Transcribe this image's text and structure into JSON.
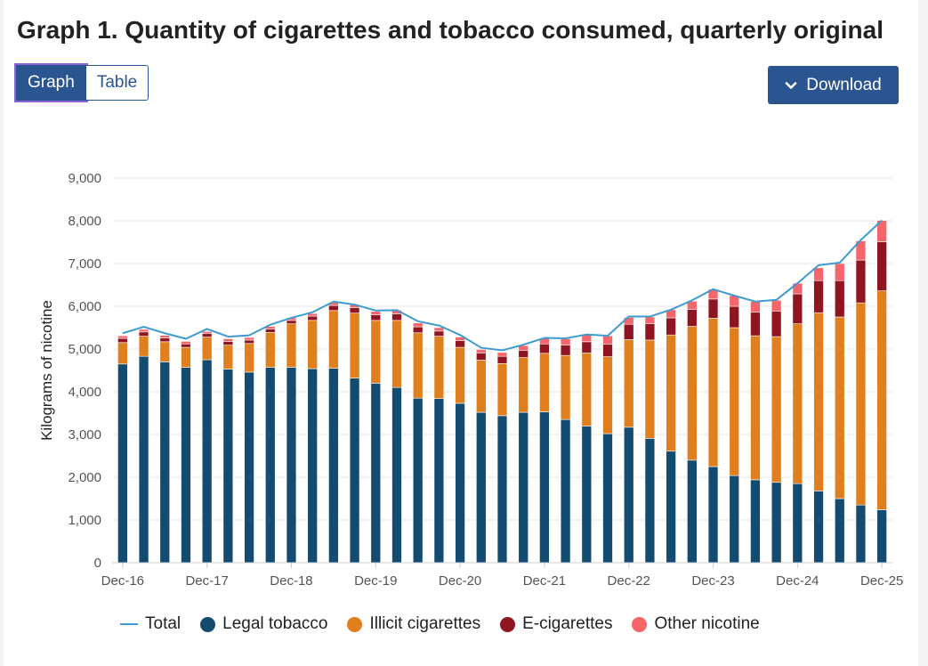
{
  "title": "Graph 1. Quantity of cigarettes and tobacco consumed, quarterly original",
  "tabs": [
    {
      "label": "Graph",
      "active": true
    },
    {
      "label": "Table",
      "active": false
    }
  ],
  "download_label": "Download",
  "colors": {
    "total": "#3d9bd0",
    "legal": "#134c70",
    "illicit": "#e07f1d",
    "ecig": "#8f1521",
    "other": "#f6656a",
    "accent": "#2a5591"
  },
  "chart_data": {
    "type": "bar",
    "stacked": true,
    "ylabel": "Kilograms of nicotine",
    "xlabel": "",
    "ylim": [
      0,
      9000
    ],
    "yticks": [
      "0",
      "1,000",
      "2,000",
      "3,000",
      "4,000",
      "5,000",
      "6,000",
      "7,000",
      "8,000",
      "9,000"
    ],
    "grid": true,
    "legend_position": "bottom",
    "x_tick_labels": [
      {
        "index": 0,
        "label": "Dec-16"
      },
      {
        "index": 4,
        "label": "Dec-17"
      },
      {
        "index": 8,
        "label": "Dec-18"
      },
      {
        "index": 12,
        "label": "Dec-19"
      },
      {
        "index": 16,
        "label": "Dec-20"
      },
      {
        "index": 20,
        "label": "Dec-21"
      },
      {
        "index": 24,
        "label": "Dec-22"
      },
      {
        "index": 28,
        "label": "Dec-23"
      },
      {
        "index": 32,
        "label": "Dec-24"
      },
      {
        "index": 36,
        "label": "Dec-25"
      }
    ],
    "categories": [
      "Dec-16",
      "Mar-17",
      "Jun-17",
      "Sep-17",
      "Dec-17",
      "Mar-18",
      "Jun-18",
      "Sep-18",
      "Dec-18",
      "Mar-19",
      "Jun-19",
      "Sep-19",
      "Dec-19",
      "Mar-20",
      "Jun-20",
      "Sep-20",
      "Dec-20",
      "Mar-21",
      "Jun-21",
      "Sep-21",
      "Dec-21",
      "Mar-22",
      "Jun-22",
      "Sep-22",
      "Dec-22",
      "Mar-23",
      "Jun-23",
      "Sep-23",
      "Dec-23",
      "Mar-24",
      "Jun-24",
      "Sep-24",
      "Dec-24",
      "Mar-25",
      "Jun-25",
      "Sep-25",
      "Dec-25"
    ],
    "series": [
      {
        "name": "Legal tobacco",
        "key": "legal",
        "values": [
          4650,
          4830,
          4700,
          4570,
          4750,
          4530,
          4460,
          4570,
          4570,
          4540,
          4550,
          4320,
          4200,
          4100,
          3850,
          3840,
          3730,
          3520,
          3440,
          3520,
          3530,
          3350,
          3200,
          3020,
          3170,
          2910,
          2610,
          2400,
          2250,
          2040,
          1940,
          1880,
          1850,
          1680,
          1500,
          1350,
          1240
        ]
      },
      {
        "name": "Illicit cigarettes",
        "key": "illicit",
        "values": [
          500,
          470,
          470,
          470,
          530,
          560,
          670,
          820,
          1020,
          1130,
          1350,
          1520,
          1470,
          1570,
          1530,
          1460,
          1310,
          1220,
          1220,
          1280,
          1370,
          1500,
          1710,
          1800,
          2050,
          2300,
          2720,
          3130,
          3470,
          3460,
          3370,
          3410,
          3740,
          4170,
          4250,
          4730,
          5120
        ]
      },
      {
        "name": "E-cigarettes",
        "key": "ecig",
        "values": [
          100,
          100,
          90,
          80,
          80,
          90,
          80,
          80,
          80,
          100,
          120,
          130,
          130,
          150,
          140,
          120,
          160,
          170,
          170,
          170,
          220,
          240,
          260,
          290,
          360,
          380,
          400,
          400,
          450,
          500,
          550,
          600,
          700,
          750,
          850,
          1000,
          1150
        ]
      },
      {
        "name": "Other nicotine",
        "key": "other",
        "values": [
          60,
          60,
          60,
          60,
          50,
          60,
          60,
          60,
          60,
          60,
          70,
          70,
          80,
          90,
          90,
          80,
          80,
          80,
          90,
          110,
          130,
          150,
          170,
          200,
          160,
          160,
          190,
          190,
          230,
          250,
          250,
          250,
          250,
          300,
          400,
          450,
          500
        ]
      },
      {
        "name": "Total",
        "key": "total",
        "values": [
          5370,
          5520,
          5370,
          5240,
          5470,
          5290,
          5320,
          5570,
          5730,
          5860,
          6110,
          6040,
          5900,
          5910,
          5650,
          5550,
          5330,
          5030,
          4970,
          5100,
          5260,
          5250,
          5340,
          5310,
          5760,
          5760,
          5920,
          6140,
          6400,
          6250,
          6110,
          6150,
          6540,
          6960,
          7020,
          7550,
          8010
        ]
      }
    ]
  }
}
